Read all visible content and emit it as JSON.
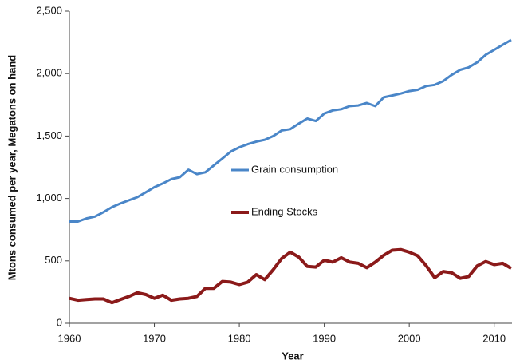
{
  "chart_data": {
    "type": "line",
    "x_label": "Year",
    "y_label": "Mtons consumed per year, Megatons on hand",
    "x": [
      1960,
      1961,
      1962,
      1963,
      1964,
      1965,
      1966,
      1967,
      1968,
      1969,
      1970,
      1971,
      1972,
      1973,
      1974,
      1975,
      1976,
      1977,
      1978,
      1979,
      1980,
      1981,
      1982,
      1983,
      1984,
      1985,
      1986,
      1987,
      1988,
      1989,
      1990,
      1991,
      1992,
      1993,
      1994,
      1995,
      1996,
      1997,
      1998,
      1999,
      2000,
      2001,
      2002,
      2003,
      2004,
      2005,
      2006,
      2007,
      2008,
      2009,
      2010,
      2011,
      2012
    ],
    "series": [
      {
        "name": "Grain consumption",
        "color": "#4a86c8",
        "values": [
          815,
          815,
          840,
          855,
          890,
          930,
          960,
          985,
          1010,
          1050,
          1090,
          1120,
          1155,
          1170,
          1230,
          1195,
          1210,
          1265,
          1320,
          1375,
          1410,
          1435,
          1455,
          1470,
          1500,
          1545,
          1555,
          1600,
          1640,
          1620,
          1680,
          1705,
          1715,
          1740,
          1745,
          1765,
          1740,
          1810,
          1825,
          1840,
          1860,
          1870,
          1900,
          1910,
          1940,
          1990,
          2030,
          2050,
          2090,
          2150,
          2190,
          2230,
          2270
        ]
      },
      {
        "name": "Ending Stocks",
        "color": "#8b1a1a",
        "values": [
          200,
          185,
          190,
          195,
          195,
          165,
          190,
          215,
          245,
          230,
          200,
          225,
          185,
          195,
          200,
          215,
          280,
          280,
          335,
          330,
          310,
          330,
          390,
          350,
          430,
          520,
          570,
          530,
          455,
          450,
          505,
          490,
          525,
          490,
          480,
          445,
          490,
          545,
          585,
          590,
          570,
          540,
          460,
          365,
          415,
          405,
          360,
          375,
          460,
          495,
          470,
          480,
          440
        ]
      }
    ],
    "xlim": [
      1960,
      2012
    ],
    "xticks": [
      1960,
      1970,
      1980,
      1990,
      2000,
      2010
    ],
    "ylim": [
      0,
      2500
    ],
    "yticks": [
      0,
      500,
      {
        "value": 1000,
        "label": "1,000"
      },
      {
        "value": 1500,
        "label": "1,500"
      },
      {
        "value": 2000,
        "label": "2,000"
      },
      {
        "value": 2500,
        "label": "2,500"
      }
    ],
    "grid": false
  }
}
